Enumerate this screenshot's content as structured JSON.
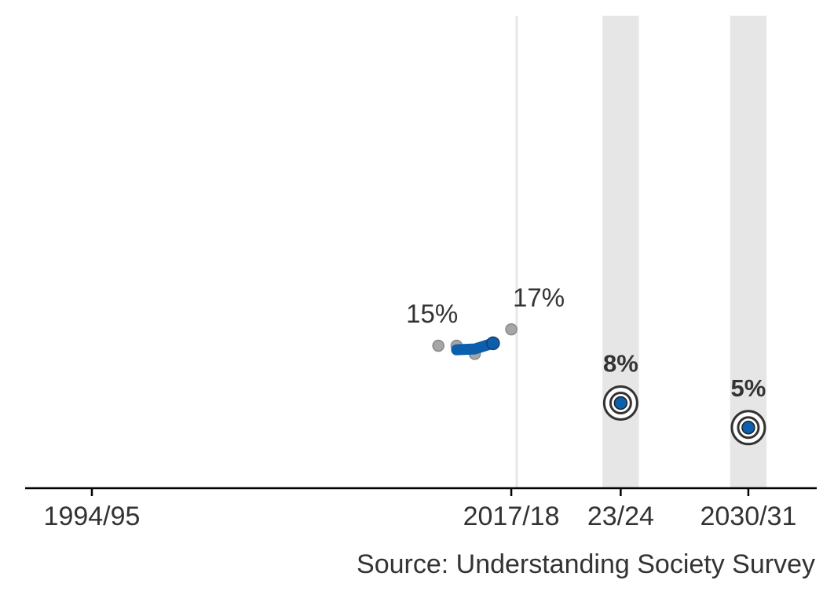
{
  "chart_data": {
    "type": "line",
    "source": "Source: Understanding Society Survey",
    "xlim": [
      1990.34,
      2033.75
    ],
    "ylim": [
      -2.4,
      55.3
    ],
    "xticks": [
      {
        "value": 1994,
        "label": "1994/95"
      },
      {
        "value": 2017,
        "label": "2017/18"
      },
      {
        "value": 2023,
        "label": "23/24"
      },
      {
        "value": 2030,
        "label": "2030/31"
      }
    ],
    "bands": [
      [
        2022,
        2024
      ],
      [
        2029,
        2031
      ]
    ],
    "band_color": "#e6e6e6",
    "reference_line": 2017.3,
    "series": [
      {
        "style": "points",
        "color": "#a6a6a6",
        "x": [
          2013,
          2014,
          2015,
          2016,
          2017
        ],
        "values": [
          15,
          15,
          14,
          15.2,
          17
        ],
        "value_labels": [
          "15%",
          null,
          null,
          null,
          "17%"
        ]
      },
      {
        "style": "trend",
        "color": "#0b5fad",
        "x": [
          2014,
          2015,
          2016
        ],
        "values": [
          14.5,
          14.6,
          15.3
        ]
      },
      {
        "style": "target",
        "color": "#0b5fad",
        "x": [
          2023,
          2030
        ],
        "values": [
          8,
          5
        ],
        "value_labels": [
          "8%",
          "5%"
        ]
      }
    ]
  }
}
